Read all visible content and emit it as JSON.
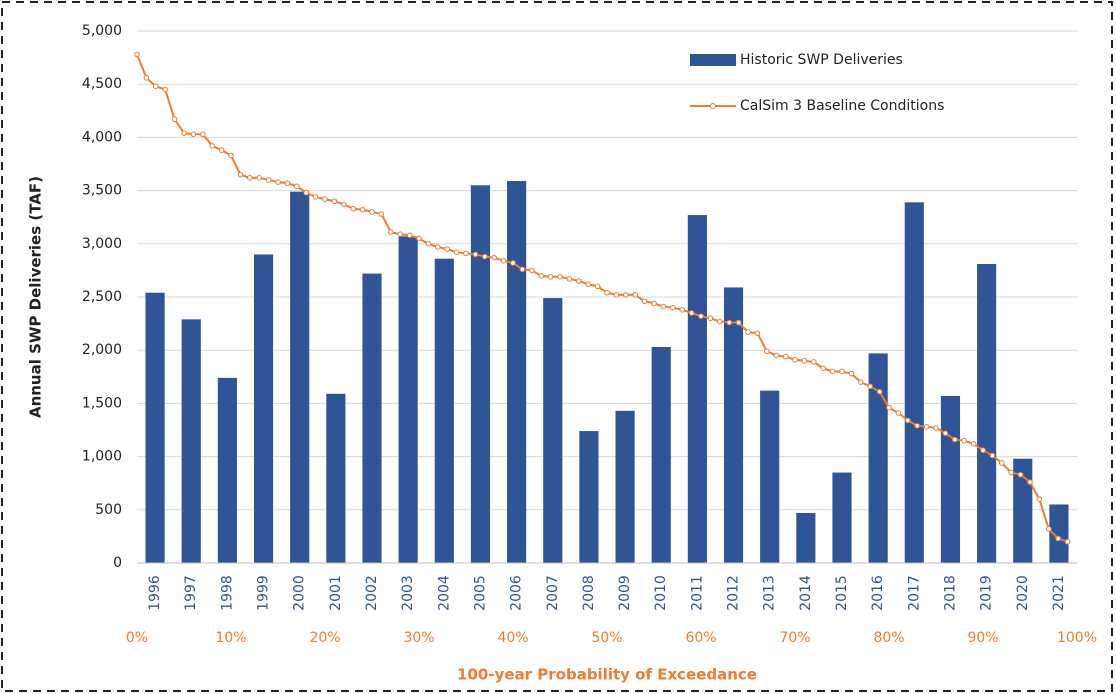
{
  "chart_data": {
    "type": "bar",
    "y_label": "Annual SWP Deliveries (TAF)",
    "x2_label": "100-year Probability of Exceedance",
    "categories": [
      "1996",
      "1997",
      "1998",
      "1999",
      "2000",
      "2001",
      "2002",
      "2003",
      "2004",
      "2005",
      "2006",
      "2007",
      "2008",
      "2009",
      "2010",
      "2011",
      "2012",
      "2013",
      "2014",
      "2015",
      "2016",
      "2017",
      "2018",
      "2019",
      "2020",
      "2021"
    ],
    "series": [
      {
        "name": "Historic SWP Deliveries",
        "type": "bar",
        "color": "#2f5597",
        "values": [
          2540,
          2290,
          1740,
          2900,
          3490,
          1590,
          2720,
          3070,
          2860,
          3550,
          3590,
          2490,
          1240,
          1430,
          2030,
          3270,
          2590,
          1620,
          470,
          850,
          1970,
          3390,
          1570,
          2810,
          980,
          550
        ]
      },
      {
        "name": "CalSim 3 Baseline Conditions",
        "type": "line",
        "axis": "x2",
        "color": "#ed7d31",
        "x": [
          0,
          1,
          2,
          3,
          4,
          5,
          6,
          7,
          8,
          9,
          10,
          11,
          12,
          13,
          14,
          15,
          16,
          17,
          18,
          19,
          20,
          21,
          22,
          23,
          24,
          25,
          26,
          27,
          28,
          29,
          30,
          31,
          32,
          33,
          34,
          35,
          36,
          37,
          38,
          39,
          40,
          41,
          42,
          43,
          44,
          45,
          46,
          47,
          48,
          49,
          50,
          51,
          52,
          53,
          54,
          55,
          56,
          57,
          58,
          59,
          60,
          61,
          62,
          63,
          64,
          65,
          66,
          67,
          68,
          69,
          70,
          71,
          72,
          73,
          74,
          75,
          76,
          77,
          78,
          79,
          80,
          81,
          82,
          83,
          84,
          85,
          86,
          87,
          88,
          89,
          90,
          91,
          92,
          93,
          94,
          95,
          96,
          97,
          98,
          99
        ],
        "values": [
          4780,
          4560,
          4480,
          4450,
          4170,
          4040,
          4030,
          4030,
          3920,
          3880,
          3830,
          3650,
          3620,
          3620,
          3600,
          3580,
          3570,
          3540,
          3480,
          3440,
          3420,
          3400,
          3370,
          3330,
          3320,
          3300,
          3280,
          3110,
          3090,
          3080,
          3050,
          3000,
          2970,
          2950,
          2920,
          2910,
          2900,
          2880,
          2870,
          2840,
          2820,
          2760,
          2750,
          2700,
          2690,
          2690,
          2670,
          2650,
          2620,
          2600,
          2540,
          2520,
          2520,
          2520,
          2460,
          2440,
          2410,
          2400,
          2380,
          2350,
          2320,
          2300,
          2270,
          2260,
          2260,
          2170,
          2160,
          1990,
          1950,
          1940,
          1910,
          1900,
          1890,
          1830,
          1800,
          1800,
          1780,
          1700,
          1660,
          1610,
          1460,
          1410,
          1340,
          1290,
          1280,
          1270,
          1220,
          1160,
          1150,
          1120,
          1060,
          1010,
          940,
          850,
          830,
          760,
          600,
          320,
          230,
          200
        ]
      }
    ],
    "ylim": [
      0,
      5000
    ],
    "yticks": [
      0,
      500,
      {
        "value": 1000,
        "label": "1,000"
      },
      {
        "value": 1500,
        "label": "1,500"
      },
      {
        "value": 2000,
        "label": "2,000"
      },
      {
        "value": 2500,
        "label": "2,500"
      },
      {
        "value": 3000,
        "label": "3,000"
      },
      {
        "value": 3500,
        "label": "3,500"
      },
      {
        "value": 4000,
        "label": "4,000"
      },
      {
        "value": 4500,
        "label": "4,500"
      },
      {
        "value": 5000,
        "label": "5,000"
      }
    ],
    "x2lim": [
      0,
      100
    ],
    "x2ticks": [
      {
        "value": 0,
        "label": "0%"
      },
      {
        "value": 10,
        "label": "10%"
      },
      {
        "value": 20,
        "label": "20%"
      },
      {
        "value": 30,
        "label": "30%"
      },
      {
        "value": 40,
        "label": "40%"
      },
      {
        "value": 50,
        "label": "50%"
      },
      {
        "value": 60,
        "label": "60%"
      },
      {
        "value": 70,
        "label": "70%"
      },
      {
        "value": 80,
        "label": "80%"
      },
      {
        "value": 90,
        "label": "90%"
      },
      {
        "value": 100,
        "label": "100%"
      }
    ],
    "grid": true,
    "legend": "upper right"
  }
}
